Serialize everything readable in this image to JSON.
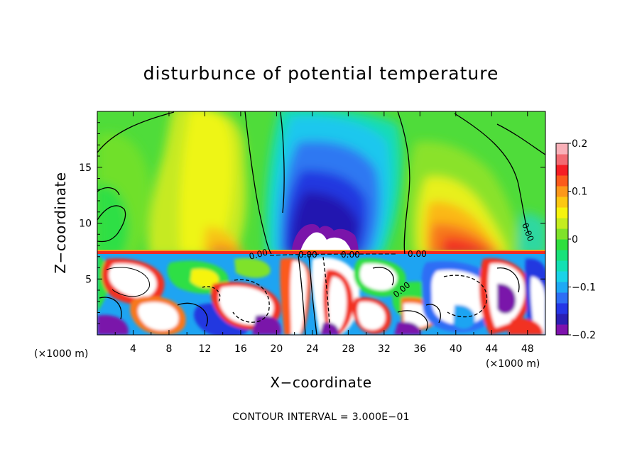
{
  "chart_data": {
    "type": "heatmap",
    "title": "disturbunce of potential temperature",
    "xlabel": "X−coordinate",
    "ylabel": "Z−coordinate",
    "x_unit_label": "(×1000 m)",
    "x_unit_label_right": "(×1000 m)",
    "footer": "CONTOUR INTERVAL = 3.000E−01",
    "xlim": [
      0,
      50
    ],
    "ylim": [
      0,
      20
    ],
    "x_ticks": [
      4,
      8,
      12,
      16,
      20,
      24,
      28,
      32,
      36,
      40,
      44,
      48
    ],
    "x_tick_labels": [
      "4",
      "8",
      "12",
      "16",
      "20",
      "24",
      "28",
      "32",
      "36",
      "40",
      "44",
      "48"
    ],
    "y_ticks": [
      5,
      10,
      15
    ],
    "y_tick_labels": [
      "5",
      "10",
      "15"
    ],
    "colorbar": {
      "range": [
        -0.2,
        0.2
      ],
      "ticks": [
        0.2,
        0.1,
        0,
        -0.1,
        -0.2
      ],
      "tick_labels": [
        "0.2",
        "0.1",
        "0",
        "−0.1",
        "−0.2"
      ],
      "colors": [
        "#7e12ad",
        "#2b1fb4",
        "#2536e6",
        "#2e6ef5",
        "#1ea9f5",
        "#19d3e8",
        "#12e0b4",
        "#18e27a",
        "#2fdf3e",
        "#7fe22a",
        "#c4ec1f",
        "#f6f40e",
        "#fcc812",
        "#fc981a",
        "#fb5a1c",
        "#f51d24",
        "#f26a72",
        "#f9b0b8"
      ]
    },
    "contour_labels": [
      "0.00",
      "0.00",
      "0.00",
      "0.00",
      "0.00",
      "0.00"
    ]
  }
}
